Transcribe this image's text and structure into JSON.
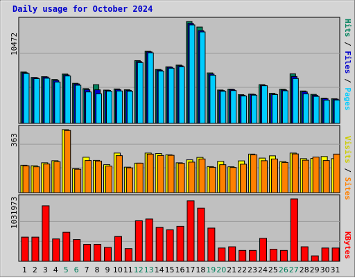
{
  "title": "Daily usage for October 2024",
  "colors": {
    "background": "#c0c0c0",
    "grid": "#999999",
    "hits": "#00805c",
    "files": "#0000cc",
    "pages": "#00ccff",
    "visits": "#ffff00",
    "sites": "#ff8000",
    "kbytes": "#ff0000",
    "weekend_label": "#00805c",
    "weekday_label": "#000000",
    "title": "#0000cc"
  },
  "right_labels": {
    "top": [
      {
        "text": "Hits",
        "color": "#00805c"
      },
      {
        "text": " / ",
        "color": "#000000"
      },
      {
        "text": "Files",
        "color": "#0000cc"
      },
      {
        "text": " / ",
        "color": "#000000"
      },
      {
        "text": "Pages",
        "color": "#00ccff"
      }
    ],
    "middle": [
      {
        "text": "Visits",
        "color": "#cccc00"
      },
      {
        "text": " / ",
        "color": "#000000"
      },
      {
        "text": "Sites",
        "color": "#ff8000"
      }
    ],
    "bottom": [
      {
        "text": "KBytes",
        "color": "#ff0000"
      }
    ]
  },
  "chart_data": {
    "type": "bar",
    "title": "Daily usage for October 2024",
    "categories": [
      "1",
      "2",
      "3",
      "4",
      "5",
      "6",
      "7",
      "8",
      "9",
      "10",
      "11",
      "12",
      "13",
      "14",
      "15",
      "16",
      "17",
      "18",
      "19",
      "20",
      "21",
      "22",
      "23",
      "24",
      "25",
      "26",
      "27",
      "28",
      "29",
      "30",
      "31"
    ],
    "weekend_days": [
      5,
      6,
      12,
      13,
      19,
      20,
      26,
      27
    ],
    "panels": [
      {
        "name": "hits_files_pages",
        "ymax_label": "10472",
        "ymax": 10472,
        "series": [
          {
            "name": "Hits",
            "values": [
              5280,
              4720,
              4800,
              4510,
              5070,
              4120,
              3570,
              3980,
              3420,
              3540,
              3460,
              6450,
              7410,
              5540,
              5810,
              5990,
              10472,
              9900,
              5190,
              3430,
              3520,
              2950,
              3010,
              3980,
              3090,
              3510,
              5090,
              3330,
              2980,
              2590,
              2530
            ]
          },
          {
            "name": "Files",
            "values": [
              5200,
              4690,
              4760,
              4410,
              4980,
              4050,
              3470,
              3450,
              3380,
              3470,
              3390,
              6350,
              7350,
              5470,
              5770,
              5910,
              10280,
              9530,
              5070,
              3370,
              3470,
              2890,
              2970,
              3920,
              3010,
              3440,
              4820,
              3240,
              2890,
              2540,
              2480
            ]
          },
          {
            "name": "Pages",
            "values": [
              5130,
              4600,
              4640,
              4250,
              4870,
              3920,
              3230,
              3040,
              3310,
              3330,
              3300,
              6250,
              7250,
              5370,
              5670,
              5820,
              10120,
              9400,
              4950,
              3300,
              3370,
              2810,
              2900,
              3870,
              2960,
              3350,
              4610,
              3030,
              2770,
              2390,
              2400
            ]
          }
        ]
      },
      {
        "name": "visits_sites",
        "ymax_label": "363",
        "ymax": 363,
        "series": [
          {
            "name": "Visits",
            "values": [
              158,
              155,
              172,
              184,
              363,
              138,
              204,
              186,
              161,
              228,
              147,
              170,
              228,
              225,
              218,
              172,
              189,
              203,
              150,
              180,
              149,
              183,
              222,
              199,
              212,
              179,
              228,
              196,
              197,
              208,
              196
            ]
          },
          {
            "name": "Sites",
            "values": [
              155,
              149,
              165,
              178,
              358,
              135,
              185,
              182,
              153,
              213,
              143,
              170,
              222,
              214,
              215,
              169,
              176,
              194,
              146,
              161,
              145,
              164,
              218,
              184,
              194,
              174,
              223,
              187,
              205,
              185,
              222
            ]
          }
        ]
      },
      {
        "name": "kbytes",
        "ymax_label": "1031973",
        "ymax": 1031973,
        "series": [
          {
            "name": "KBytes",
            "values": [
              400000,
              400000,
              918000,
              370000,
              480000,
              360000,
              280000,
              280000,
              230000,
              410000,
              210000,
              670000,
              700000,
              560000,
              520000,
              580000,
              1000000,
              880000,
              550000,
              220000,
              240000,
              180000,
              180000,
              380000,
              200000,
              180000,
              1031973,
              240000,
              90000,
              220000,
              220000
            ]
          }
        ]
      }
    ]
  }
}
